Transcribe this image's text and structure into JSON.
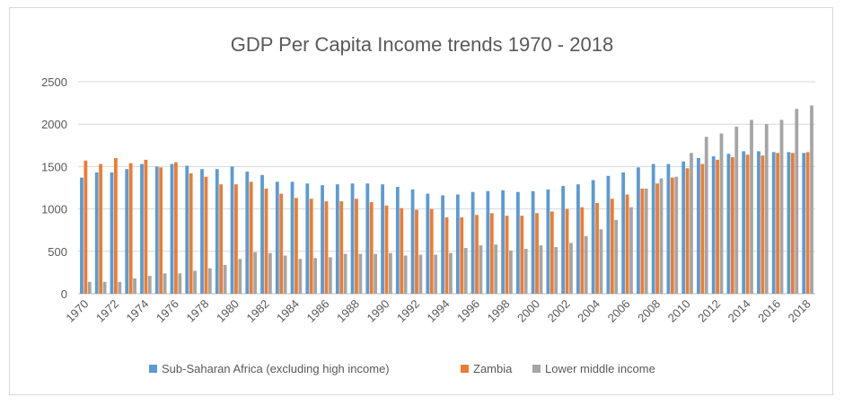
{
  "chart_data": {
    "type": "bar",
    "title": "GDP Per Capita Income trends 1970 - 2018",
    "xlabel": "",
    "ylabel": "",
    "ylim": [
      0,
      2500
    ],
    "yticks": [
      0,
      500,
      1000,
      1500,
      2000,
      2500
    ],
    "grid": true,
    "legend_position": "bottom",
    "categories": [
      "1970",
      "1971",
      "1972",
      "1973",
      "1974",
      "1975",
      "1976",
      "1977",
      "1978",
      "1979",
      "1980",
      "1981",
      "1982",
      "1983",
      "1984",
      "1985",
      "1986",
      "1987",
      "1988",
      "1989",
      "1990",
      "1991",
      "1992",
      "1993",
      "1994",
      "1995",
      "1996",
      "1997",
      "1998",
      "1999",
      "2000",
      "2001",
      "2002",
      "2003",
      "2004",
      "2005",
      "2006",
      "2007",
      "2008",
      "2009",
      "2010",
      "2011",
      "2012",
      "2013",
      "2014",
      "2015",
      "2016",
      "2017",
      "2018"
    ],
    "xtick_labels": [
      "1970",
      "1972",
      "1974",
      "1976",
      "1978",
      "1980",
      "1982",
      "1984",
      "1986",
      "1988",
      "1990",
      "1992",
      "1994",
      "1996",
      "1998",
      "2000",
      "2002",
      "2004",
      "2006",
      "2008",
      "2010",
      "2012",
      "2014",
      "2016",
      "2018"
    ],
    "series": [
      {
        "name": "Sub-Saharan Africa (excluding high income)",
        "color": "#5b9bd5",
        "values": [
          1370,
          1430,
          1430,
          1470,
          1530,
          1500,
          1530,
          1510,
          1470,
          1470,
          1500,
          1440,
          1400,
          1320,
          1320,
          1300,
          1280,
          1290,
          1300,
          1300,
          1290,
          1260,
          1230,
          1180,
          1160,
          1170,
          1200,
          1210,
          1220,
          1200,
          1210,
          1230,
          1270,
          1290,
          1340,
          1390,
          1430,
          1490,
          1530,
          1530,
          1560,
          1600,
          1620,
          1650,
          1680,
          1680,
          1670,
          1670,
          1660
        ]
      },
      {
        "name": "Zambia",
        "color": "#ed7d31",
        "values": [
          1570,
          1530,
          1600,
          1540,
          1580,
          1490,
          1550,
          1420,
          1380,
          1290,
          1290,
          1320,
          1240,
          1180,
          1130,
          1120,
          1090,
          1090,
          1120,
          1080,
          1040,
          1010,
          990,
          1000,
          900,
          900,
          930,
          950,
          920,
          920,
          950,
          970,
          1000,
          1020,
          1070,
          1120,
          1170,
          1240,
          1300,
          1370,
          1480,
          1530,
          1580,
          1610,
          1640,
          1630,
          1660,
          1660,
          1670
        ]
      },
      {
        "name": "Lower middle income",
        "color": "#a5a5a5",
        "values": [
          140,
          140,
          140,
          180,
          210,
          240,
          240,
          270,
          300,
          340,
          410,
          490,
          480,
          450,
          410,
          420,
          430,
          470,
          470,
          470,
          480,
          450,
          460,
          460,
          480,
          540,
          570,
          580,
          510,
          530,
          570,
          550,
          600,
          680,
          760,
          870,
          1020,
          1240,
          1360,
          1380,
          1660,
          1850,
          1890,
          1970,
          2050,
          2000,
          2050,
          2180,
          2220
        ]
      }
    ]
  }
}
